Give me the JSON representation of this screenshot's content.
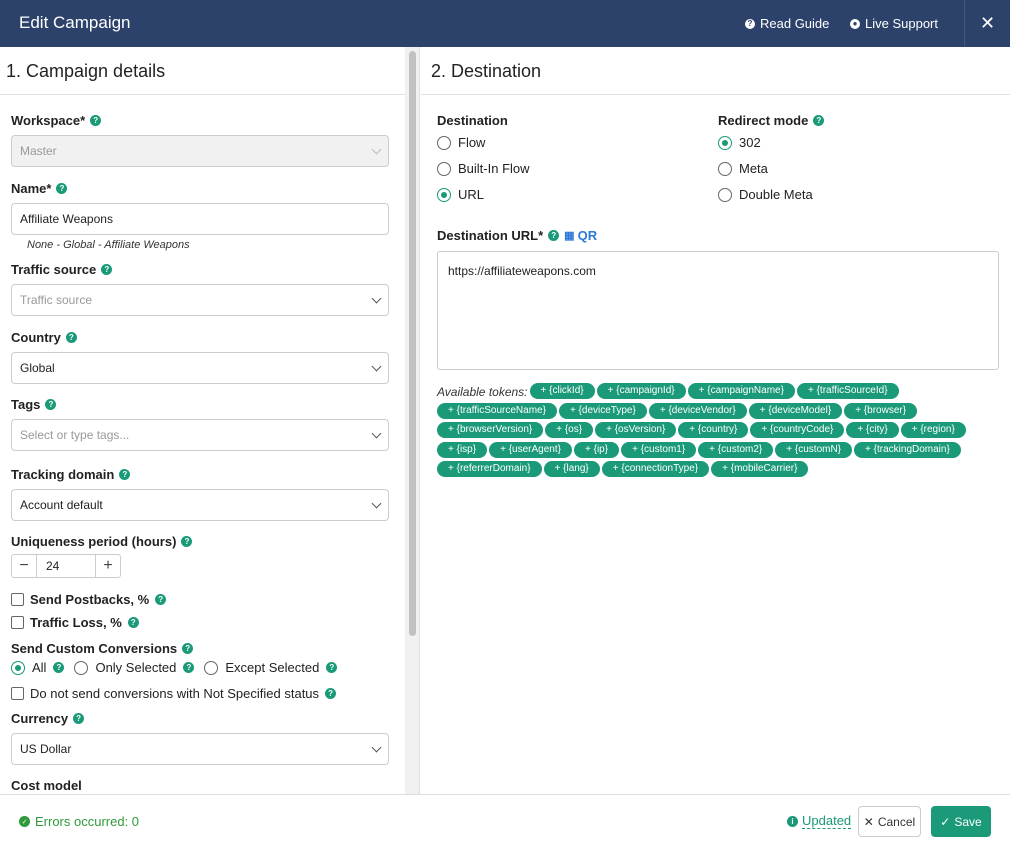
{
  "header": {
    "title": "Edit Campaign",
    "read_guide": "Read Guide",
    "live_support": "Live Support",
    "close": "✕"
  },
  "left": {
    "title": "1. Campaign details",
    "workspace": {
      "label": "Workspace*",
      "value": "Master"
    },
    "name": {
      "label": "Name*",
      "value": "Affiliate Weapons",
      "hint": "None - Global - Affiliate Weapons"
    },
    "traffic_source": {
      "label": "Traffic source",
      "placeholder": "Traffic source"
    },
    "country": {
      "label": "Country",
      "value": "Global"
    },
    "tags": {
      "label": "Tags",
      "placeholder": "Select or type tags..."
    },
    "tracking_domain": {
      "label": "Tracking domain",
      "value": "Account default"
    },
    "uniqueness": {
      "label": "Uniqueness period (hours)",
      "value": "24",
      "minus": "−",
      "plus": "+"
    },
    "send_postbacks": "Send Postbacks, %",
    "traffic_loss": "Traffic Loss, %",
    "custom_conversions": {
      "label": "Send Custom Conversions",
      "options": [
        "All",
        "Only Selected",
        "Except Selected"
      ],
      "selected": "All"
    },
    "not_specified": "Do not send conversions with Not Specified status",
    "currency": {
      "label": "Currency",
      "value": "US Dollar"
    },
    "cost_model": {
      "label": "Cost model"
    }
  },
  "right": {
    "title": "2. Destination",
    "destination": {
      "label": "Destination",
      "options": [
        "Flow",
        "Built-In Flow",
        "URL"
      ],
      "selected": "URL"
    },
    "redirect": {
      "label": "Redirect mode",
      "options": [
        "302",
        "Meta",
        "Double Meta"
      ],
      "selected": "302"
    },
    "url": {
      "label": "Destination URL*",
      "qr": "QR",
      "value": "https://affiliateweapons.com"
    },
    "tokens_label": "Available tokens:",
    "tokens": [
      "+ {clickId}",
      "+ {campaignId}",
      "+ {campaignName}",
      "+ {trafficSourceId}",
      "+ {trafficSourceName}",
      "+ {deviceType}",
      "+ {deviceVendor}",
      "+ {deviceModel}",
      "+ {browser}",
      "+ {browserVersion}",
      "+ {os}",
      "+ {osVersion}",
      "+ {country}",
      "+ {countryCode}",
      "+ {city}",
      "+ {region}",
      "+ {isp}",
      "+ {userAgent}",
      "+ {ip}",
      "+ {custom1}",
      "+ {custom2}",
      "+ {customN}",
      "+ {trackingDomain}",
      "+ {referrerDomain}",
      "+ {lang}",
      "+ {connectionType}",
      "+ {mobileCarrier}"
    ]
  },
  "footer": {
    "errors": "Errors occurred: 0",
    "updated": "Updated",
    "cancel": "Cancel",
    "save": "Save"
  },
  "colors": {
    "header": "#2d426b",
    "accent": "#1a9a78",
    "success": "#2e9a3c"
  }
}
